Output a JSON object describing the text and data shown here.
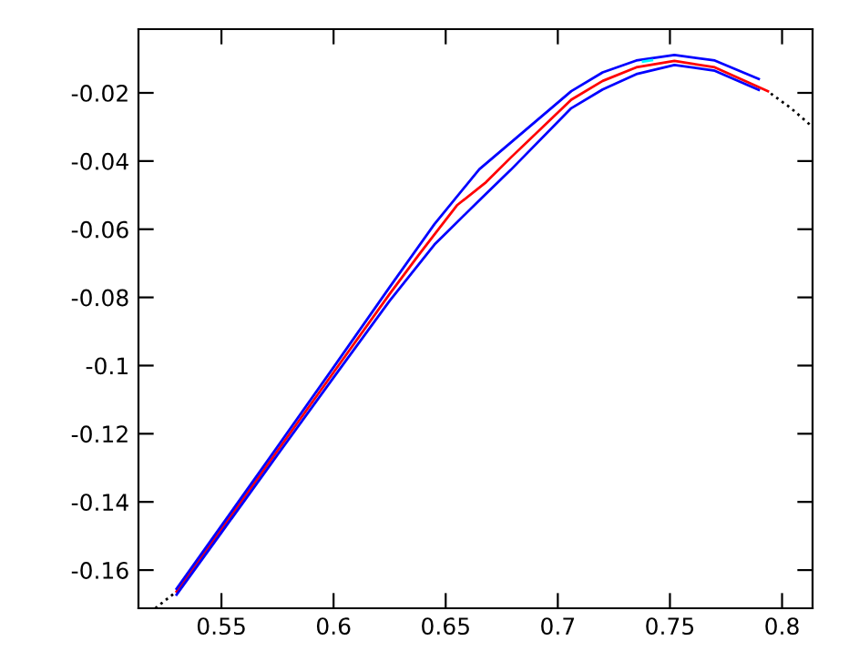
{
  "chart_data": {
    "type": "line",
    "xlim": [
      0.513,
      0.8136
    ],
    "ylim": [
      -0.1712,
      -0.0013
    ],
    "xticks": [
      0.55,
      0.6,
      0.65,
      0.7,
      0.75,
      0.8
    ],
    "yticks": [
      -0.16,
      -0.14,
      -0.12,
      -0.1,
      -0.08,
      -0.06,
      -0.04,
      -0.02
    ],
    "grid": false,
    "legend": false,
    "marker": "none",
    "series": [
      {
        "color": "#000000",
        "line_style": "dotted",
        "x": [
          0.5205,
          0.529,
          0.66,
          0.795,
          0.804,
          0.8136
        ],
        "values": [
          -0.1712,
          -0.1668,
          null,
          -0.0202,
          -0.0245,
          -0.03
        ]
      },
      {
        "color": "#ff0000",
        "line_style": "solid",
        "x": [
          0.53,
          0.55,
          0.575,
          0.6,
          0.625,
          0.638,
          0.655,
          0.668,
          0.679,
          0.706,
          0.72,
          0.735,
          0.752,
          0.77,
          0.7937
        ],
        "values": [
          -0.1663,
          -0.148,
          -0.125,
          -0.102,
          -0.079,
          -0.0675,
          -0.053,
          -0.0462,
          -0.039,
          -0.022,
          -0.0165,
          -0.0125,
          -0.0106,
          -0.0125,
          -0.0195
        ]
      },
      {
        "color": "#0000ff",
        "line_style": "solid",
        "x": [
          0.53,
          0.55,
          0.575,
          0.6,
          0.625,
          0.645,
          0.665,
          0.679,
          0.706,
          0.72,
          0.735,
          0.752,
          0.77,
          0.7896
        ],
        "values": [
          -0.1655,
          -0.147,
          -0.1238,
          -0.1005,
          -0.077,
          -0.0585,
          -0.0424,
          -0.0346,
          -0.0195,
          -0.014,
          -0.0105,
          -0.0089,
          -0.0105,
          -0.0159
        ]
      },
      {
        "color": "#0000ff",
        "line_style": "solid",
        "x": [
          0.53,
          0.55,
          0.575,
          0.6,
          0.625,
          0.645,
          0.665,
          0.679,
          0.706,
          0.72,
          0.735,
          0.752,
          0.77,
          0.7896
        ],
        "values": [
          -0.1672,
          -0.149,
          -0.1262,
          -0.1035,
          -0.081,
          -0.0645,
          -0.0515,
          -0.0426,
          -0.0245,
          -0.019,
          -0.0145,
          -0.0118,
          -0.0135,
          -0.0191
        ]
      },
      {
        "color": "#00ffff",
        "line_style": "solid",
        "x": [
          0.738,
          0.742
        ],
        "values": [
          -0.0108,
          -0.0104
        ]
      }
    ]
  }
}
